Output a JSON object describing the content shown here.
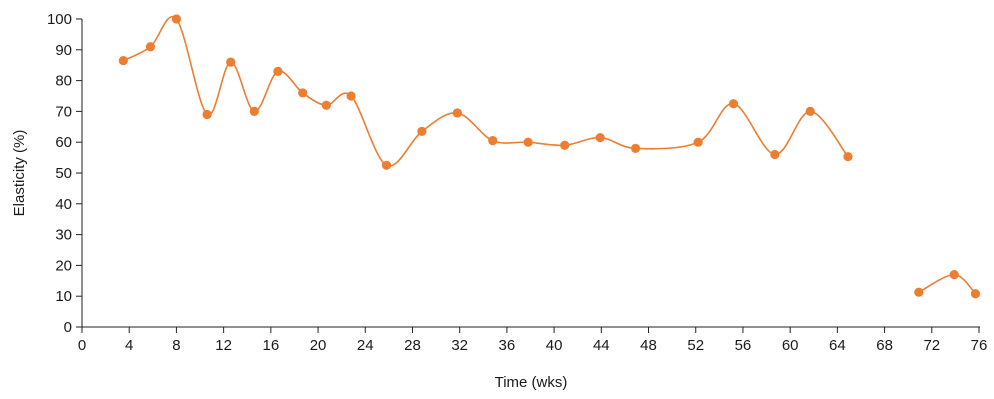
{
  "chart_data": {
    "type": "line",
    "xlabel": "Time (wks)",
    "ylabel": "Elasticity (%)",
    "xlim": [
      0,
      76
    ],
    "ylim": [
      0,
      100
    ],
    "xticks": [
      0,
      4,
      8,
      12,
      16,
      20,
      24,
      28,
      32,
      36,
      40,
      44,
      48,
      52,
      56,
      60,
      64,
      68,
      72,
      76
    ],
    "yticks": [
      0,
      10,
      20,
      30,
      40,
      50,
      60,
      70,
      80,
      90,
      100
    ],
    "grid": false,
    "smooth": true,
    "color": "#ED7D31",
    "series": [
      {
        "segments": [
          [
            [
              3.5,
              86.5
            ],
            [
              5.8,
              91
            ],
            [
              8,
              100
            ],
            [
              10.6,
              69
            ],
            [
              12.6,
              86
            ],
            [
              14.6,
              70
            ],
            [
              16.6,
              83
            ],
            [
              18.7,
              76
            ],
            [
              20.7,
              72
            ],
            [
              22.8,
              75
            ],
            [
              25.8,
              52.5
            ],
            [
              28.8,
              63.5
            ],
            [
              31.8,
              69.5
            ],
            [
              34.8,
              60.5
            ],
            [
              37.8,
              60
            ],
            [
              40.9,
              59
            ],
            [
              43.9,
              61.5
            ],
            [
              46.9,
              58
            ],
            [
              52.2,
              60
            ],
            [
              55.2,
              72.5
            ],
            [
              58.7,
              56
            ],
            [
              61.7,
              70
            ],
            [
              64.9,
              55.3
            ]
          ],
          [
            [
              70.9,
              11.3
            ],
            [
              73.9,
              17
            ],
            [
              75.7,
              10.8
            ]
          ]
        ]
      }
    ]
  }
}
